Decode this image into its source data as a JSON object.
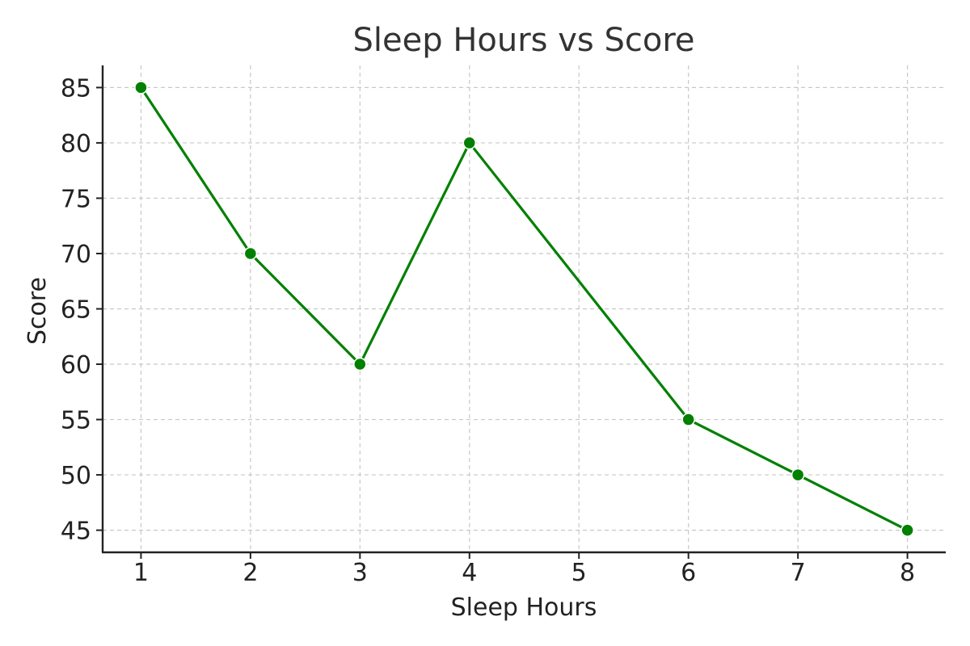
{
  "chart_data": {
    "type": "line",
    "title": "Sleep Hours vs Score",
    "xlabel": "Sleep Hours",
    "ylabel": "Score",
    "x": [
      1,
      2,
      3,
      4,
      6,
      7,
      8
    ],
    "series": [
      {
        "values": [
          85,
          70,
          60,
          80,
          55,
          50,
          45
        ],
        "color": "#008000",
        "marker": "circle"
      }
    ],
    "x_ticks": [
      1,
      2,
      3,
      4,
      5,
      6,
      7,
      8
    ],
    "y_ticks": [
      45,
      50,
      55,
      60,
      65,
      70,
      75,
      80,
      85
    ],
    "xlim": [
      0.65,
      8.35
    ],
    "ylim": [
      43,
      87
    ],
    "grid": true,
    "grid_style": "dashed"
  }
}
